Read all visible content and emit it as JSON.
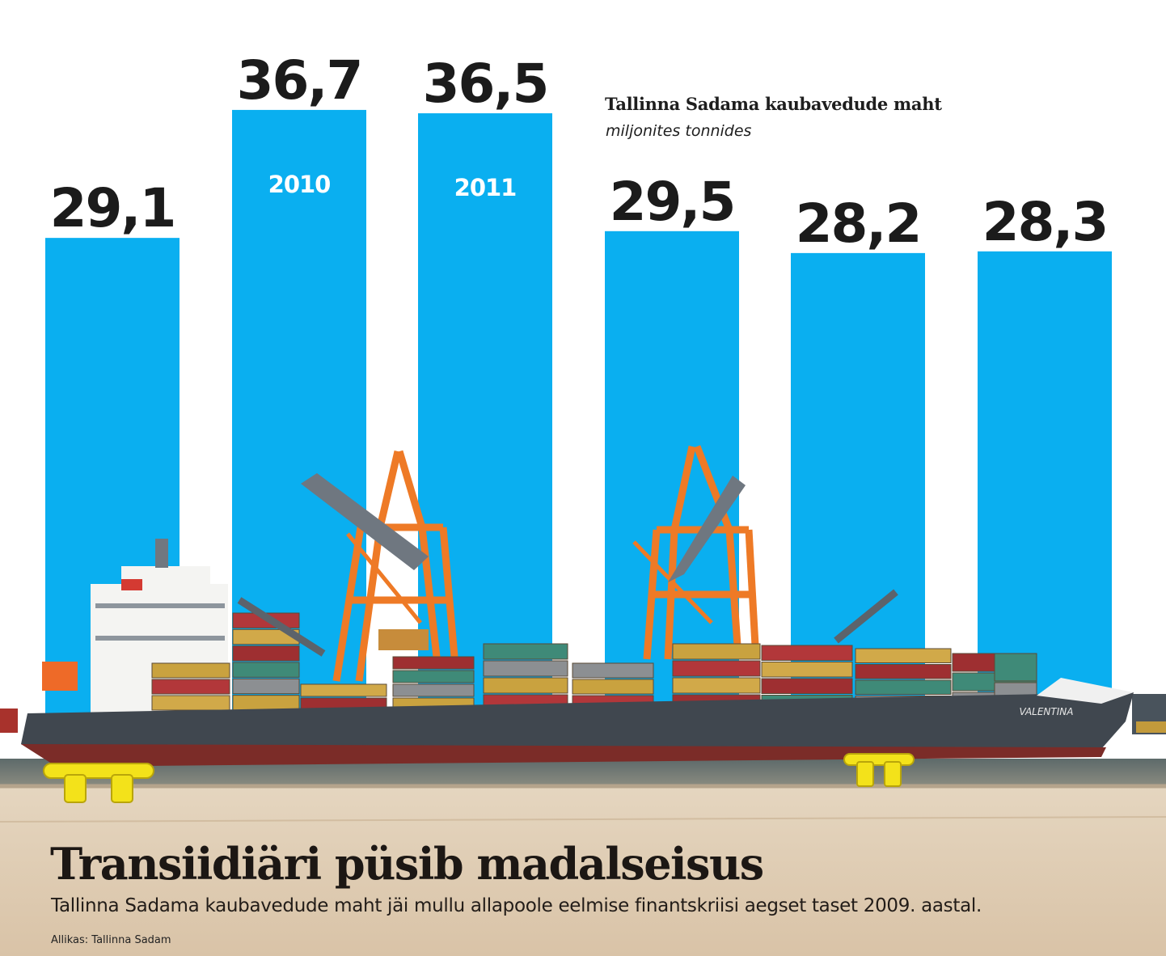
{
  "chart_data": {
    "type": "bar",
    "title": "Tallinna Sadama kaubavedude maht",
    "unit": "miljonites tonnides",
    "categories": [
      "",
      "2010",
      "2011",
      "",
      "",
      ""
    ],
    "values": [
      29.1,
      36.7,
      36.5,
      29.5,
      28.2,
      28.3
    ],
    "value_labels": [
      "29,1",
      "36,7",
      "36,5",
      "29,5",
      "28,2",
      "28,3"
    ],
    "xlabel": "",
    "ylabel": "",
    "grid": false,
    "bar_color": "#0aaff0"
  },
  "article": {
    "headline": "Transiidiäri püsib madalseisus",
    "subtitle": "Tallinna Sadama kaubavedude maht jäi mullu allapoole eelmise finantskriisi aegset taset 2009. aastal.",
    "source": "Allikas: Tallinna Sadam"
  },
  "illustration": {
    "ship_name": "VALENTINA",
    "sky_color": "#ffffff",
    "quay_color": "#ddc8ad",
    "hull_color": "#40474f",
    "crane_color": "#ee7a26",
    "bollard_color": "#f3e21a"
  }
}
